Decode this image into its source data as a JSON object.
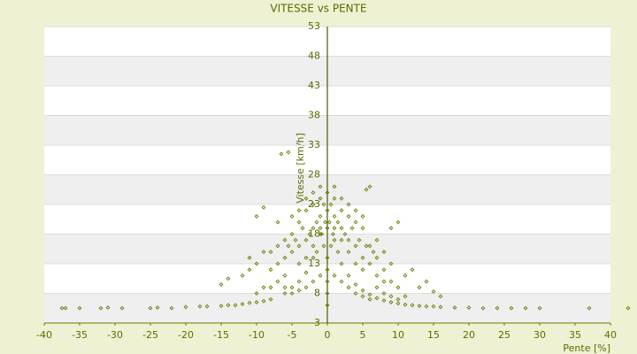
{
  "chart_data": {
    "type": "scatter",
    "title": "VITESSE vs PENTE",
    "x_label": "Pente [%]",
    "y_label": "Vitesse [km/h]",
    "color": "#6b7a00",
    "xlim": [
      -40,
      40
    ],
    "xticks": [
      -40,
      -35,
      -30,
      -25,
      -20,
      -15,
      -10,
      -5,
      0,
      5,
      10,
      15,
      20,
      25,
      30,
      35,
      40
    ],
    "ylim": [
      3,
      53
    ],
    "yticks": [
      3,
      8,
      13,
      18,
      23,
      28,
      33,
      38,
      43,
      48,
      53
    ],
    "grid": true,
    "x": [
      -37.5,
      -37,
      -35,
      -32,
      -31,
      -29,
      -25,
      -24,
      -22,
      -20,
      -18,
      -17,
      -15,
      -14,
      -13,
      -12,
      -11,
      -10,
      -9,
      -8,
      8,
      9,
      10,
      11,
      12,
      13,
      14,
      15,
      16,
      18,
      20,
      22,
      24,
      26,
      28,
      30,
      37,
      42.5,
      -1,
      -2,
      -3,
      -4,
      -5,
      -6,
      1,
      2,
      3,
      4,
      5,
      6,
      7,
      -6.5,
      -5.5,
      -7,
      -10,
      -9,
      -14,
      -15,
      -12,
      -11,
      -8,
      6,
      5.5,
      10,
      9,
      12,
      13,
      15,
      14,
      16,
      -4,
      -3,
      -2,
      -1,
      0,
      1,
      2,
      3,
      4,
      5,
      -4,
      -3,
      -2,
      -1,
      0,
      1,
      2,
      3,
      4,
      5,
      -5,
      -5,
      -6,
      -6,
      -7,
      -7,
      -8,
      -4,
      -3,
      -2,
      -1,
      0,
      1,
      2,
      3,
      4,
      5,
      6,
      6,
      7,
      7,
      8,
      8,
      9,
      -0.5,
      0.5,
      1.5,
      -1.5,
      2.5,
      -2.5,
      -0.5,
      0.5,
      1.5,
      -1.5,
      0,
      0,
      0,
      0,
      0,
      0.3,
      -0.3,
      0.8,
      -0.8,
      3.5,
      -3.5,
      4.5,
      -4.5,
      5.5,
      -5.5,
      6.5,
      2,
      -2,
      1,
      -1,
      3,
      -3,
      4,
      -4,
      5,
      -5,
      2,
      3,
      4,
      5,
      6,
      -2,
      -3,
      -4,
      -5,
      7,
      8,
      9,
      10,
      11,
      10,
      9,
      11,
      8,
      7,
      -6,
      -7,
      -8,
      -9,
      -10,
      -6,
      -9,
      -10,
      -11,
      1,
      -1
    ],
    "values": [
      5.5,
      5.5,
      5.5,
      5.5,
      5.6,
      5.5,
      5.5,
      5.6,
      5.5,
      5.7,
      5.8,
      5.8,
      5.9,
      6,
      6,
      6.2,
      6.4,
      6.5,
      6.7,
      7,
      6.8,
      6.5,
      6.3,
      6.1,
      6,
      5.9,
      5.8,
      5.8,
      5.7,
      5.6,
      5.6,
      5.5,
      5.5,
      5.5,
      5.5,
      5.5,
      5.5,
      5.5,
      18,
      14,
      11.5,
      10,
      9,
      8,
      17,
      13,
      11,
      9.5,
      8.5,
      7.8,
      7.2,
      31.5,
      31.8,
      20,
      21,
      22.5,
      10.5,
      9.5,
      11,
      14,
      12,
      26,
      25.5,
      20,
      19,
      12,
      9,
      8.3,
      10,
      7.5,
      20,
      22,
      23,
      24,
      25,
      24,
      22,
      21,
      20,
      19,
      16,
      17,
      19,
      21,
      22,
      21,
      19,
      17,
      16,
      14,
      18,
      15,
      17,
      14,
      16,
      13,
      15,
      13,
      14,
      16,
      19,
      19,
      19,
      17,
      15,
      13,
      12,
      13,
      16,
      14,
      11,
      12,
      15,
      13,
      23,
      23,
      20,
      20,
      18,
      18,
      16,
      16,
      15,
      15,
      14,
      12,
      10,
      8,
      6,
      20,
      20,
      18,
      18,
      19,
      19,
      17,
      17,
      16,
      16,
      15,
      24,
      25,
      26,
      26,
      23,
      24,
      22,
      22,
      21,
      21,
      10,
      9,
      8,
      7.5,
      7,
      10,
      9,
      8.5,
      8,
      9,
      8,
      7.5,
      7,
      7.5,
      9,
      10,
      11,
      10,
      17,
      11,
      10,
      9,
      9,
      8,
      9,
      15,
      13,
      12,
      11,
      11
    ]
  }
}
